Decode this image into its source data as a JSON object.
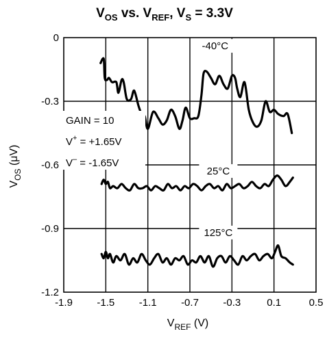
{
  "chart_data": {
    "type": "line",
    "title": {
      "main": "V",
      "sub1": "OS",
      "mid": " vs. V",
      "sub2": "REF",
      "mid2": ", V",
      "sub3": "S",
      "tail": " = 3.3V"
    },
    "xlabel": {
      "main": "V",
      "sub": "REF",
      "unit": " (V)"
    },
    "ylabel": {
      "main": "V",
      "sub": "OS",
      "unit": " (μV)"
    },
    "xlim": [
      -1.9,
      0.5
    ],
    "ylim": [
      -1.2,
      0
    ],
    "xticks": [
      "-1.9",
      "-1.5",
      "-1.1",
      "-0.7",
      "-0.3",
      "0.1",
      "0.5"
    ],
    "yticks": [
      "0",
      "-0.3",
      "-0.6",
      "-0.9",
      "-1.2"
    ],
    "grid": true,
    "annotation": {
      "gain": "GAIN = 10",
      "vplus_main": "V",
      "vplus_sup": "+",
      "vplus_val": " = +1.65V",
      "vminus_main": "V",
      "vminus_sup": "–",
      "vminus_val": " = -1.65V"
    },
    "series": [
      {
        "name": "-40°C",
        "label_at": [
          -0.46,
          -0.055
        ],
        "x": [
          -1.55,
          -1.52,
          -1.51,
          -1.49,
          -1.47,
          -1.44,
          -1.4,
          -1.38,
          -1.35,
          -1.33,
          -1.3,
          -1.26,
          -1.23,
          -1.19,
          -1.16,
          -1.13,
          -1.1,
          -1.05,
          -1.0,
          -0.96,
          -0.92,
          -0.88,
          -0.84,
          -0.8,
          -0.77,
          -0.74,
          -0.7,
          -0.66,
          -0.62,
          -0.59,
          -0.57,
          -0.54,
          -0.5,
          -0.46,
          -0.42,
          -0.38,
          -0.34,
          -0.3,
          -0.27,
          -0.25,
          -0.22,
          -0.18,
          -0.14,
          -0.1,
          -0.06,
          -0.02,
          0.02,
          0.06,
          0.1,
          0.14,
          0.19,
          0.23,
          0.27
        ],
        "y": [
          -0.12,
          -0.1,
          -0.19,
          -0.2,
          -0.19,
          -0.21,
          -0.21,
          -0.26,
          -0.2,
          -0.21,
          -0.29,
          -0.29,
          -0.25,
          -0.32,
          -0.36,
          -0.37,
          -0.43,
          -0.35,
          -0.38,
          -0.41,
          -0.39,
          -0.34,
          -0.37,
          -0.43,
          -0.39,
          -0.33,
          -0.38,
          -0.38,
          -0.37,
          -0.27,
          -0.17,
          -0.16,
          -0.19,
          -0.22,
          -0.18,
          -0.22,
          -0.24,
          -0.18,
          -0.19,
          -0.24,
          -0.28,
          -0.21,
          -0.34,
          -0.4,
          -0.42,
          -0.39,
          -0.3,
          -0.35,
          -0.34,
          -0.36,
          -0.37,
          -0.36,
          -0.45
        ]
      },
      {
        "name": "25°C",
        "label_at": [
          -0.43,
          -0.645
        ],
        "x": [
          -1.54,
          -1.52,
          -1.5,
          -1.48,
          -1.46,
          -1.43,
          -1.39,
          -1.35,
          -1.31,
          -1.27,
          -1.23,
          -1.19,
          -1.15,
          -1.11,
          -1.07,
          -1.03,
          -0.99,
          -0.95,
          -0.91,
          -0.87,
          -0.83,
          -0.79,
          -0.75,
          -0.71,
          -0.67,
          -0.63,
          -0.59,
          -0.55,
          -0.51,
          -0.47,
          -0.43,
          -0.39,
          -0.35,
          -0.31,
          -0.27,
          -0.23,
          -0.19,
          -0.15,
          -0.11,
          -0.07,
          -0.03,
          0.01,
          0.05,
          0.09,
          0.13,
          0.17,
          0.21,
          0.25,
          0.28
        ],
        "y": [
          -0.69,
          -0.67,
          -0.69,
          -0.68,
          -0.71,
          -0.7,
          -0.71,
          -0.69,
          -0.71,
          -0.72,
          -0.69,
          -0.71,
          -0.71,
          -0.7,
          -0.72,
          -0.7,
          -0.71,
          -0.72,
          -0.69,
          -0.71,
          -0.7,
          -0.72,
          -0.7,
          -0.71,
          -0.69,
          -0.7,
          -0.72,
          -0.7,
          -0.69,
          -0.71,
          -0.7,
          -0.72,
          -0.69,
          -0.71,
          -0.7,
          -0.69,
          -0.71,
          -0.7,
          -0.68,
          -0.7,
          -0.71,
          -0.69,
          -0.7,
          -0.67,
          -0.65,
          -0.67,
          -0.7,
          -0.68,
          -0.66
        ]
      },
      {
        "name": "125°C",
        "label_at": [
          -0.43,
          -0.935
        ],
        "x": [
          -1.54,
          -1.52,
          -1.5,
          -1.48,
          -1.46,
          -1.43,
          -1.4,
          -1.36,
          -1.32,
          -1.28,
          -1.24,
          -1.2,
          -1.16,
          -1.12,
          -1.08,
          -1.04,
          -1.0,
          -0.96,
          -0.92,
          -0.88,
          -0.84,
          -0.8,
          -0.76,
          -0.72,
          -0.68,
          -0.64,
          -0.6,
          -0.56,
          -0.52,
          -0.48,
          -0.44,
          -0.4,
          -0.36,
          -0.32,
          -0.28,
          -0.24,
          -0.2,
          -0.16,
          -0.12,
          -0.08,
          -0.04,
          0.0,
          0.04,
          0.08,
          0.11,
          0.14,
          0.17,
          0.21,
          0.25,
          0.28
        ],
        "y": [
          -1.02,
          -1.04,
          -1.01,
          -1.04,
          -1.02,
          -1.06,
          -1.03,
          -1.05,
          -1.02,
          -1.07,
          -1.04,
          -1.06,
          -1.02,
          -1.05,
          -1.07,
          -1.04,
          -1.02,
          -1.06,
          -1.04,
          -1.07,
          -1.04,
          -1.05,
          -1.03,
          -1.07,
          -1.05,
          -1.06,
          -1.03,
          -1.06,
          -1.03,
          -1.08,
          -1.04,
          -1.03,
          -1.06,
          -1.03,
          -1.05,
          -1.07,
          -1.03,
          -1.05,
          -1.03,
          -1.02,
          -1.05,
          -1.03,
          -1.02,
          -1.04,
          -1.01,
          -0.98,
          -1.03,
          -1.04,
          -1.06,
          -1.07
        ]
      }
    ]
  }
}
